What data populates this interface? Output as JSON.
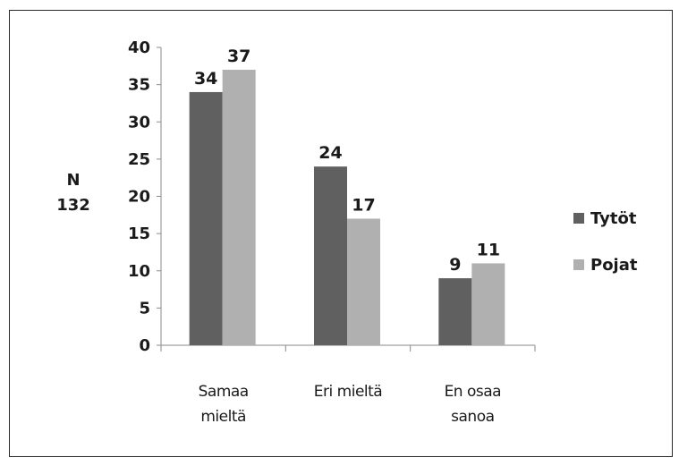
{
  "chart_data": {
    "type": "bar",
    "categories": [
      [
        "Samaa",
        "mieltä"
      ],
      [
        "Eri mieltä"
      ],
      [
        "En osaa",
        "sanoa"
      ]
    ],
    "series": [
      {
        "name": "Tytöt",
        "values": [
          34,
          24,
          9
        ],
        "color": "#606060"
      },
      {
        "name": "Pojat",
        "values": [
          37,
          17,
          11
        ],
        "color": "#b0b0b0"
      }
    ],
    "ylabel_lines": [
      "N",
      "132"
    ],
    "ylim": [
      0,
      40
    ],
    "yticks": [
      0,
      5,
      10,
      15,
      20,
      25,
      30,
      35,
      40
    ],
    "grid": false,
    "legend_position": "right"
  }
}
